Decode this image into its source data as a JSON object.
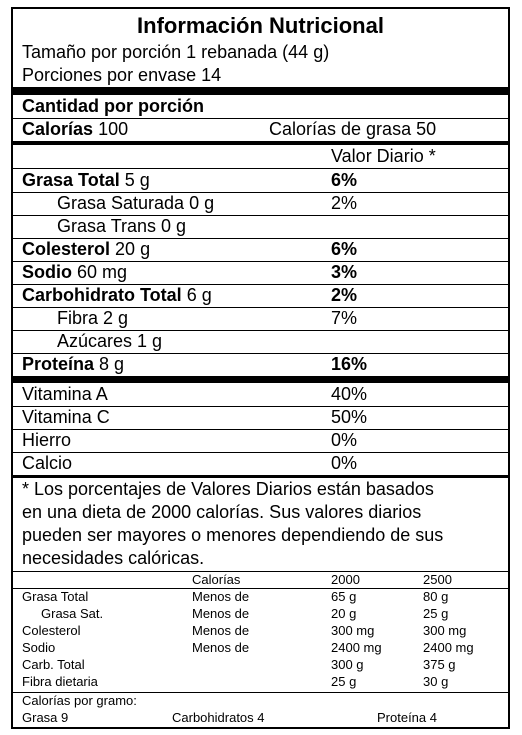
{
  "header": {
    "title": "Información Nutricional",
    "serving_size": "Tamaño por porción 1 rebanada (44 g)",
    "servings_per_container": "Porciones por envase 14"
  },
  "amount_per_serving": "Cantidad por porción",
  "calories": {
    "label": "Calorías",
    "value": "100",
    "from_fat": "Calorías de grasa 50"
  },
  "dv_header": "Valor Diario *",
  "nutrients": [
    {
      "label": "Grasa Total",
      "amount": "5 g",
      "dv": "6%"
    },
    {
      "label": "Grasa Saturada 0 g",
      "dv": "2%"
    },
    {
      "label": "Grasa Trans 0 g",
      "dv": ""
    },
    {
      "label": "Colesterol",
      "amount": "20 g",
      "dv": "6%"
    },
    {
      "label": "Sodio",
      "amount": "60 mg",
      "dv": "3%"
    },
    {
      "label": "Carbohidrato Total",
      "amount": "6 g",
      "dv": "2%"
    },
    {
      "label": "Fibra 2 g",
      "dv": "7%"
    },
    {
      "label": "Azúcares 1 g",
      "dv": ""
    },
    {
      "label": "Proteína",
      "amount": "8 g",
      "dv": "16%"
    }
  ],
  "vitamins": [
    {
      "label": "Vitamina A",
      "dv": "40%"
    },
    {
      "label": "Vitamina C",
      "dv": "50%"
    },
    {
      "label": "Hierro",
      "dv": "0%"
    },
    {
      "label": "Calcio",
      "dv": "0%"
    }
  ],
  "footnote": [
    "* Los porcentajes de Valores Diarios están basados",
    "en una dieta de 2000 calorías. Sus valores diarios",
    "pueden ser mayores o menores dependiendo de sus",
    "necesidades calóricas."
  ],
  "reference_table": {
    "header": [
      "",
      "Calorías",
      "2000",
      "2500"
    ],
    "rows": [
      [
        "Grasa Total",
        "Menos de",
        "65 g",
        "80 g"
      ],
      [
        "Grasa Sat.",
        "Menos de",
        "20 g",
        "25 g"
      ],
      [
        "Colesterol",
        "Menos de",
        "300 mg",
        "300 mg"
      ],
      [
        "Sodio",
        "Menos de",
        "2400 mg",
        "2400 mg"
      ],
      [
        "Carb. Total",
        "",
        "300 g",
        "375 g"
      ],
      [
        "Fibra dietaria",
        "",
        "25 g",
        "30 g"
      ]
    ]
  },
  "calories_per_gram": {
    "title": "Calorías por gramo:",
    "fat": "Grasa 9",
    "carbs": "Carbohidratos 4",
    "protein": "Proteína 4"
  }
}
